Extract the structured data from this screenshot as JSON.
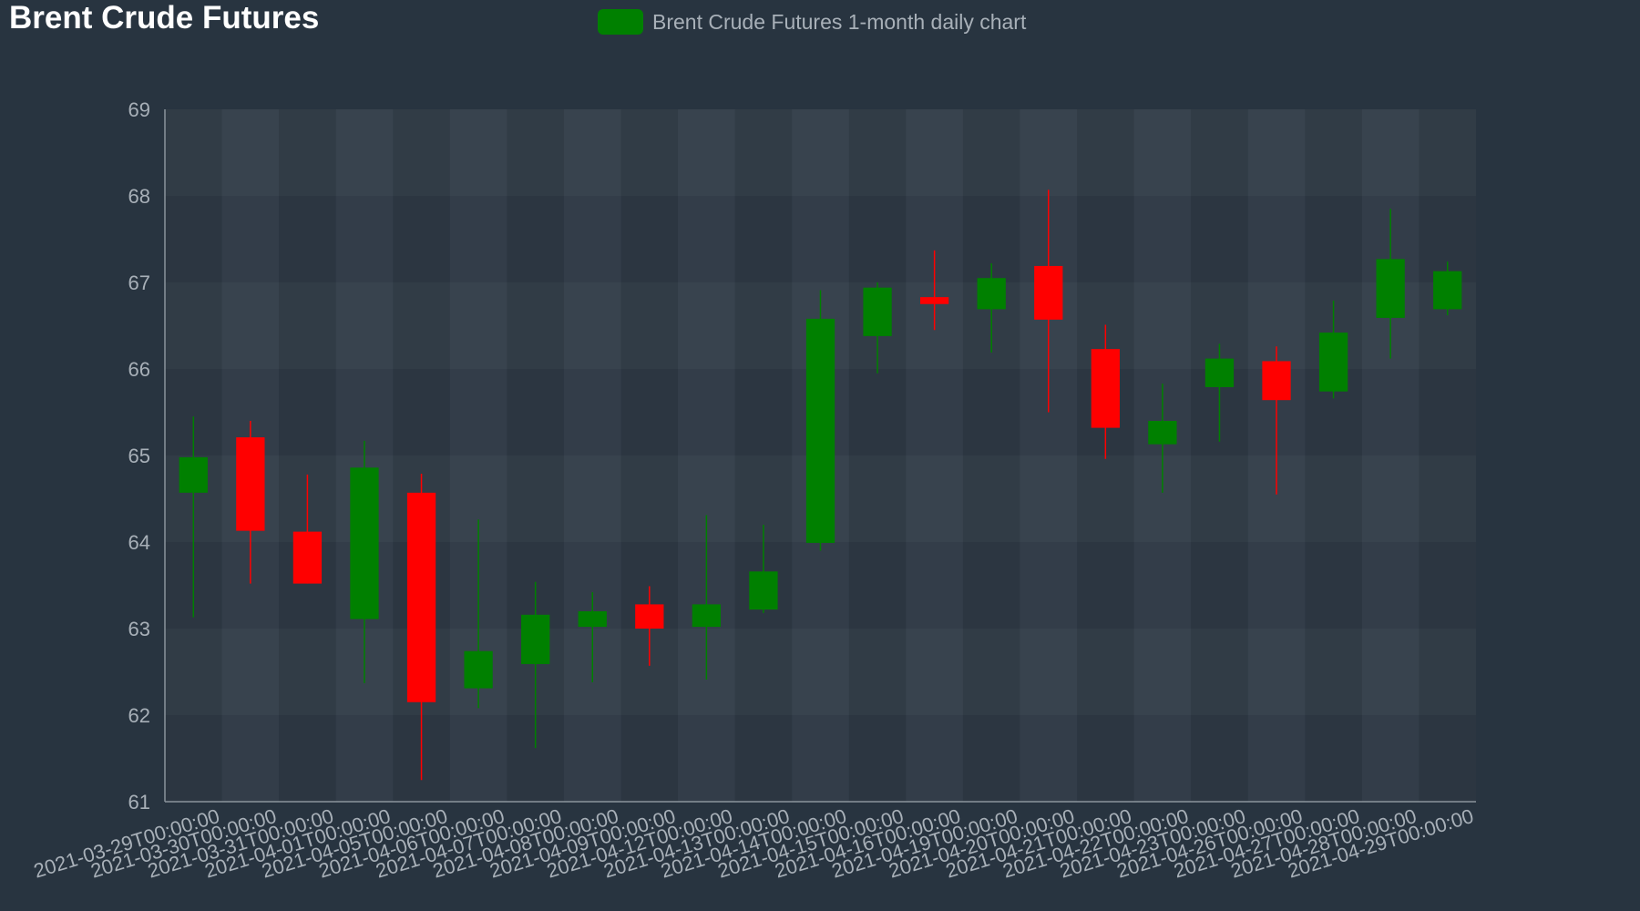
{
  "title": "Brent Crude Futures",
  "legend": {
    "label": "Brent Crude Futures 1-month daily chart",
    "color": "#008000"
  },
  "colors": {
    "up": "#008000",
    "down": "#ff0000",
    "background": "#283440",
    "axis": "#8a939c",
    "tick_text": "#a8b0b8"
  },
  "chart_data": {
    "type": "candlestick",
    "title": "Brent Crude Futures",
    "legend": [
      "Brent Crude Futures 1-month daily chart"
    ],
    "legend_position": "top-center",
    "grid": true,
    "ylim": [
      61,
      69
    ],
    "yticks": [
      61,
      62,
      63,
      64,
      65,
      66,
      67,
      68,
      69
    ],
    "categories": [
      "2021-03-29T00:00:00",
      "2021-03-30T00:00:00",
      "2021-03-31T00:00:00",
      "2021-04-01T00:00:00",
      "2021-04-05T00:00:00",
      "2021-04-06T00:00:00",
      "2021-04-07T00:00:00",
      "2021-04-08T00:00:00",
      "2021-04-09T00:00:00",
      "2021-04-12T00:00:00",
      "2021-04-13T00:00:00",
      "2021-04-14T00:00:00",
      "2021-04-15T00:00:00",
      "2021-04-16T00:00:00",
      "2021-04-19T00:00:00",
      "2021-04-20T00:00:00",
      "2021-04-21T00:00:00",
      "2021-04-22T00:00:00",
      "2021-04-23T00:00:00",
      "2021-04-26T00:00:00",
      "2021-04-27T00:00:00",
      "2021-04-28T00:00:00",
      "2021-04-29T00:00:00"
    ],
    "series": [
      {
        "name": "Brent Crude Futures 1-month daily chart",
        "open": [
          64.57,
          65.21,
          64.12,
          63.11,
          64.57,
          62.31,
          62.59,
          63.02,
          63.28,
          63.02,
          63.22,
          63.99,
          66.38,
          66.83,
          66.69,
          67.19,
          66.23,
          65.13,
          65.79,
          66.09,
          65.74,
          66.59,
          66.69
        ],
        "high": [
          65.45,
          65.4,
          64.78,
          65.17,
          64.79,
          64.26,
          63.54,
          63.42,
          63.49,
          64.31,
          64.2,
          66.91,
          67.0,
          67.37,
          67.22,
          68.07,
          66.51,
          65.83,
          66.29,
          66.26,
          66.79,
          67.85,
          67.24
        ],
        "low": [
          63.13,
          63.52,
          63.52,
          62.37,
          61.25,
          62.08,
          61.62,
          62.38,
          62.57,
          62.41,
          63.18,
          63.9,
          65.95,
          66.45,
          66.19,
          65.5,
          64.96,
          64.57,
          65.16,
          64.55,
          65.66,
          66.12,
          66.62
        ],
        "close": [
          64.98,
          64.13,
          63.52,
          64.86,
          62.15,
          62.74,
          63.16,
          63.2,
          63.0,
          63.28,
          63.66,
          66.58,
          66.94,
          66.75,
          67.05,
          66.57,
          65.32,
          65.4,
          66.12,
          65.64,
          66.42,
          67.27,
          67.13
        ]
      }
    ]
  }
}
